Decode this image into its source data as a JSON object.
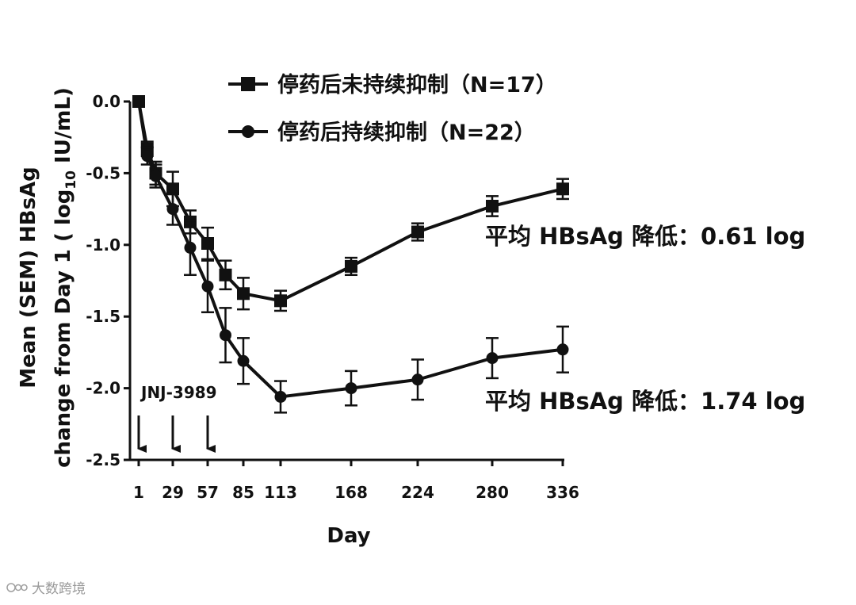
{
  "chart_data": {
    "type": "line",
    "ylabel_line1": "Mean (SEM) HBsAg",
    "ylabel_line2_prefix": "change from Day 1 ( log",
    "ylabel_line2_sub": "10",
    "ylabel_line2_suffix": " IU/mL)",
    "xlabel": "Day",
    "ylim": [
      -2.5,
      0.0
    ],
    "x_ticks": [
      "1",
      "29",
      "57",
      "85",
      "113",
      "168",
      "224",
      "280",
      "336"
    ],
    "y_ticks": [
      "0.0",
      "-0.5",
      "-1.0",
      "-1.5",
      "-2.0",
      "-2.5"
    ],
    "series": [
      {
        "name": "停药后未持续抑制（N=17）",
        "marker": "square",
        "x": [
          1,
          8,
          15,
          29,
          43,
          57,
          71,
          85,
          113,
          168,
          224,
          280,
          336
        ],
        "y": [
          0.0,
          -0.33,
          -0.5,
          -0.61,
          -0.84,
          -0.99,
          -1.21,
          -1.34,
          -1.39,
          -1.15,
          -0.91,
          -0.73,
          -0.61
        ],
        "err": [
          0.02,
          0.05,
          0.08,
          0.12,
          0.08,
          0.11,
          0.1,
          0.11,
          0.07,
          0.06,
          0.06,
          0.07,
          0.07
        ]
      },
      {
        "name": "停药后持续抑制（N=22）",
        "marker": "circle",
        "x": [
          1,
          8,
          15,
          29,
          43,
          57,
          71,
          85,
          113,
          168,
          224,
          280,
          336
        ],
        "y": [
          0.0,
          -0.38,
          -0.52,
          -0.75,
          -1.02,
          -1.29,
          -1.63,
          -1.81,
          -2.06,
          -2.0,
          -1.94,
          -1.79,
          -1.73
        ],
        "err": [
          0.02,
          0.06,
          0.08,
          0.11,
          0.19,
          0.18,
          0.19,
          0.16,
          0.11,
          0.12,
          0.14,
          0.14,
          0.16
        ]
      }
    ],
    "annotations": [
      "平均 HBsAg 降低：0.61 log",
      "平均 HBsAg 降低：1.74 log"
    ],
    "dosing_label": "JNJ-3989",
    "dosing_days": [
      1,
      29,
      57
    ],
    "legend_position": "top",
    "grid": false
  },
  "watermark": "大数跨境"
}
